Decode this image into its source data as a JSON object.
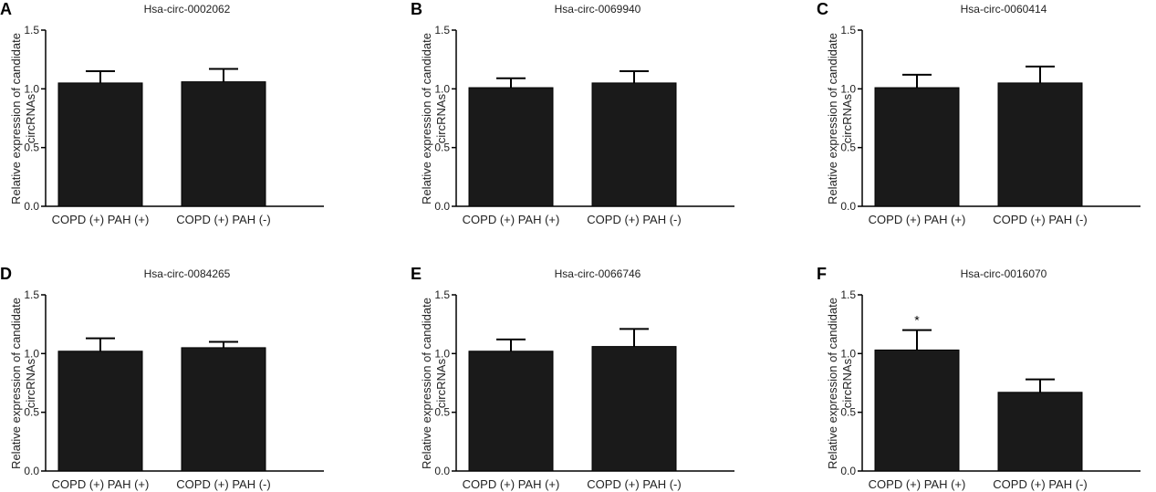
{
  "chart_data": [
    {
      "panel": "A",
      "type": "bar",
      "title": "Hsa-circ-0002062",
      "ylabel": [
        "Relative expression of candidate",
        "circRNAs"
      ],
      "categories": [
        "COPD (+) PAH (+)",
        "COPD (+) PAH (-)"
      ],
      "values": [
        1.05,
        1.06
      ],
      "errors": [
        0.1,
        0.11
      ],
      "annotations": [
        "",
        ""
      ],
      "ylim": [
        0,
        1.5
      ],
      "yticks": [
        "0.0",
        "0.5",
        "1.0",
        "1.5"
      ]
    },
    {
      "panel": "B",
      "type": "bar",
      "title": "Hsa-circ-0069940",
      "ylabel": [
        "Relative expression of candidate",
        "circRNAs"
      ],
      "categories": [
        "COPD (+) PAH (+)",
        "COPD (+) PAH (-)"
      ],
      "values": [
        1.01,
        1.05
      ],
      "errors": [
        0.08,
        0.1
      ],
      "annotations": [
        "",
        ""
      ],
      "ylim": [
        0,
        1.5
      ],
      "yticks": [
        "0.0",
        "0.5",
        "1.0",
        "1.5"
      ]
    },
    {
      "panel": "C",
      "type": "bar",
      "title": "Hsa-circ-0060414",
      "ylabel": [
        "Relative expression of candidate",
        "circRNAs"
      ],
      "categories": [
        "COPD (+) PAH (+)",
        "COPD (+) PAH (-)"
      ],
      "values": [
        1.01,
        1.05
      ],
      "errors": [
        0.11,
        0.14
      ],
      "annotations": [
        "",
        ""
      ],
      "ylim": [
        0,
        1.5
      ],
      "yticks": [
        "0.0",
        "0.5",
        "1.0",
        "1.5"
      ]
    },
    {
      "panel": "D",
      "type": "bar",
      "title": "Hsa-circ-0084265",
      "ylabel": [
        "Relative expression of candidate",
        "circRNAs"
      ],
      "categories": [
        "COPD (+) PAH (+)",
        "COPD (+) PAH (-)"
      ],
      "values": [
        1.02,
        1.05
      ],
      "errors": [
        0.11,
        0.05
      ],
      "annotations": [
        "",
        ""
      ],
      "ylim": [
        0,
        1.5
      ],
      "yticks": [
        "0.0",
        "0.5",
        "1.0",
        "1.5"
      ]
    },
    {
      "panel": "E",
      "type": "bar",
      "title": "Hsa-circ-0066746",
      "ylabel": [
        "Relative expression of candidate",
        "circRNAs"
      ],
      "categories": [
        "COPD (+) PAH (+)",
        "COPD (+) PAH (-)"
      ],
      "values": [
        1.02,
        1.06
      ],
      "errors": [
        0.1,
        0.15
      ],
      "annotations": [
        "",
        ""
      ],
      "ylim": [
        0,
        1.5
      ],
      "yticks": [
        "0.0",
        "0.5",
        "1.0",
        "1.5"
      ]
    },
    {
      "panel": "F",
      "type": "bar",
      "title": "Hsa-circ-0016070",
      "ylabel": [
        "Relative expression of candidate",
        "circRNAs"
      ],
      "categories": [
        "COPD (+) PAH (+)",
        "COPD (+) PAH (-)"
      ],
      "values": [
        1.03,
        0.67
      ],
      "errors": [
        0.17,
        0.11
      ],
      "annotations": [
        "*",
        ""
      ],
      "ylim": [
        0,
        1.5
      ],
      "yticks": [
        "0.0",
        "0.5",
        "1.0",
        "1.5"
      ]
    }
  ],
  "colors": {
    "bar": "#1a1a1a",
    "axis": "#000000"
  }
}
